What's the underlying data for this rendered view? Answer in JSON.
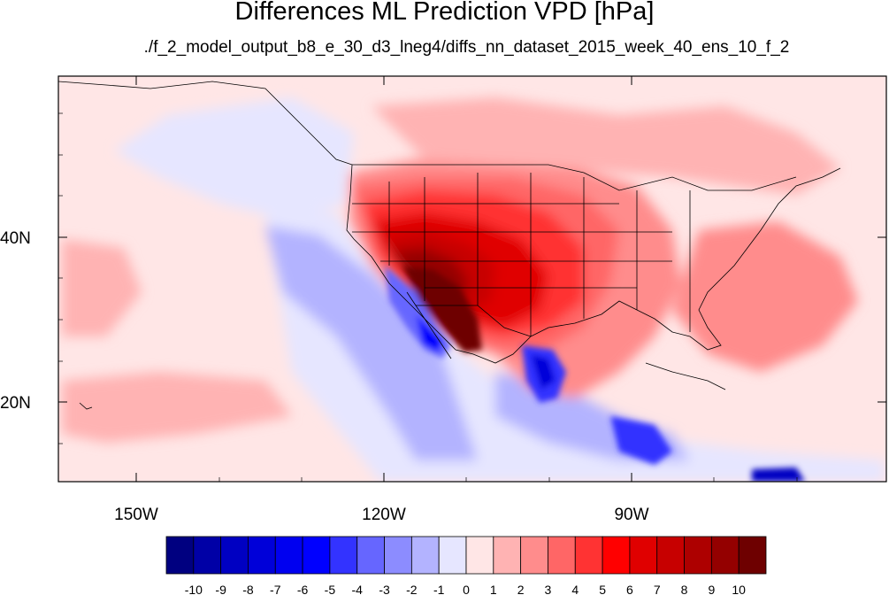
{
  "title": "Differences ML Prediction VPD [hPa]",
  "subtitle": "./f_2_model_output_b8_e_30_d3_lneg4/diffs_nn_dataset_2015_week_40_ens_10_f_2",
  "map": {
    "projection": "cylindrical equidistant",
    "lon_range": [
      -160,
      -61
    ],
    "lat_range": [
      10,
      58
    ],
    "lon_labels": [
      "150W",
      "120W",
      "90W"
    ],
    "lat_labels": [
      "40N",
      "20N"
    ],
    "variable": "VPD difference",
    "units": "hPa"
  },
  "colorbar": {
    "labels": [
      "-10",
      "-9",
      "-8",
      "-7",
      "-6",
      "-5",
      "-4",
      "-3",
      "-2",
      "-1",
      "0",
      "1",
      "2",
      "3",
      "4",
      "5",
      "6",
      "7",
      "8",
      "9",
      "10"
    ],
    "colors": [
      "#000080",
      "#0000a6",
      "#0000c2",
      "#0000d9",
      "#0000f0",
      "#0000ff",
      "#3333ff",
      "#6666ff",
      "#8c8cff",
      "#b3b3ff",
      "#e6e6ff",
      "#ffe6e6",
      "#ffb3b3",
      "#ff8c8c",
      "#ff6666",
      "#ff3333",
      "#ff0000",
      "#e00000",
      "#c70000",
      "#ad0000",
      "#940000",
      "#6e0000"
    ]
  }
}
